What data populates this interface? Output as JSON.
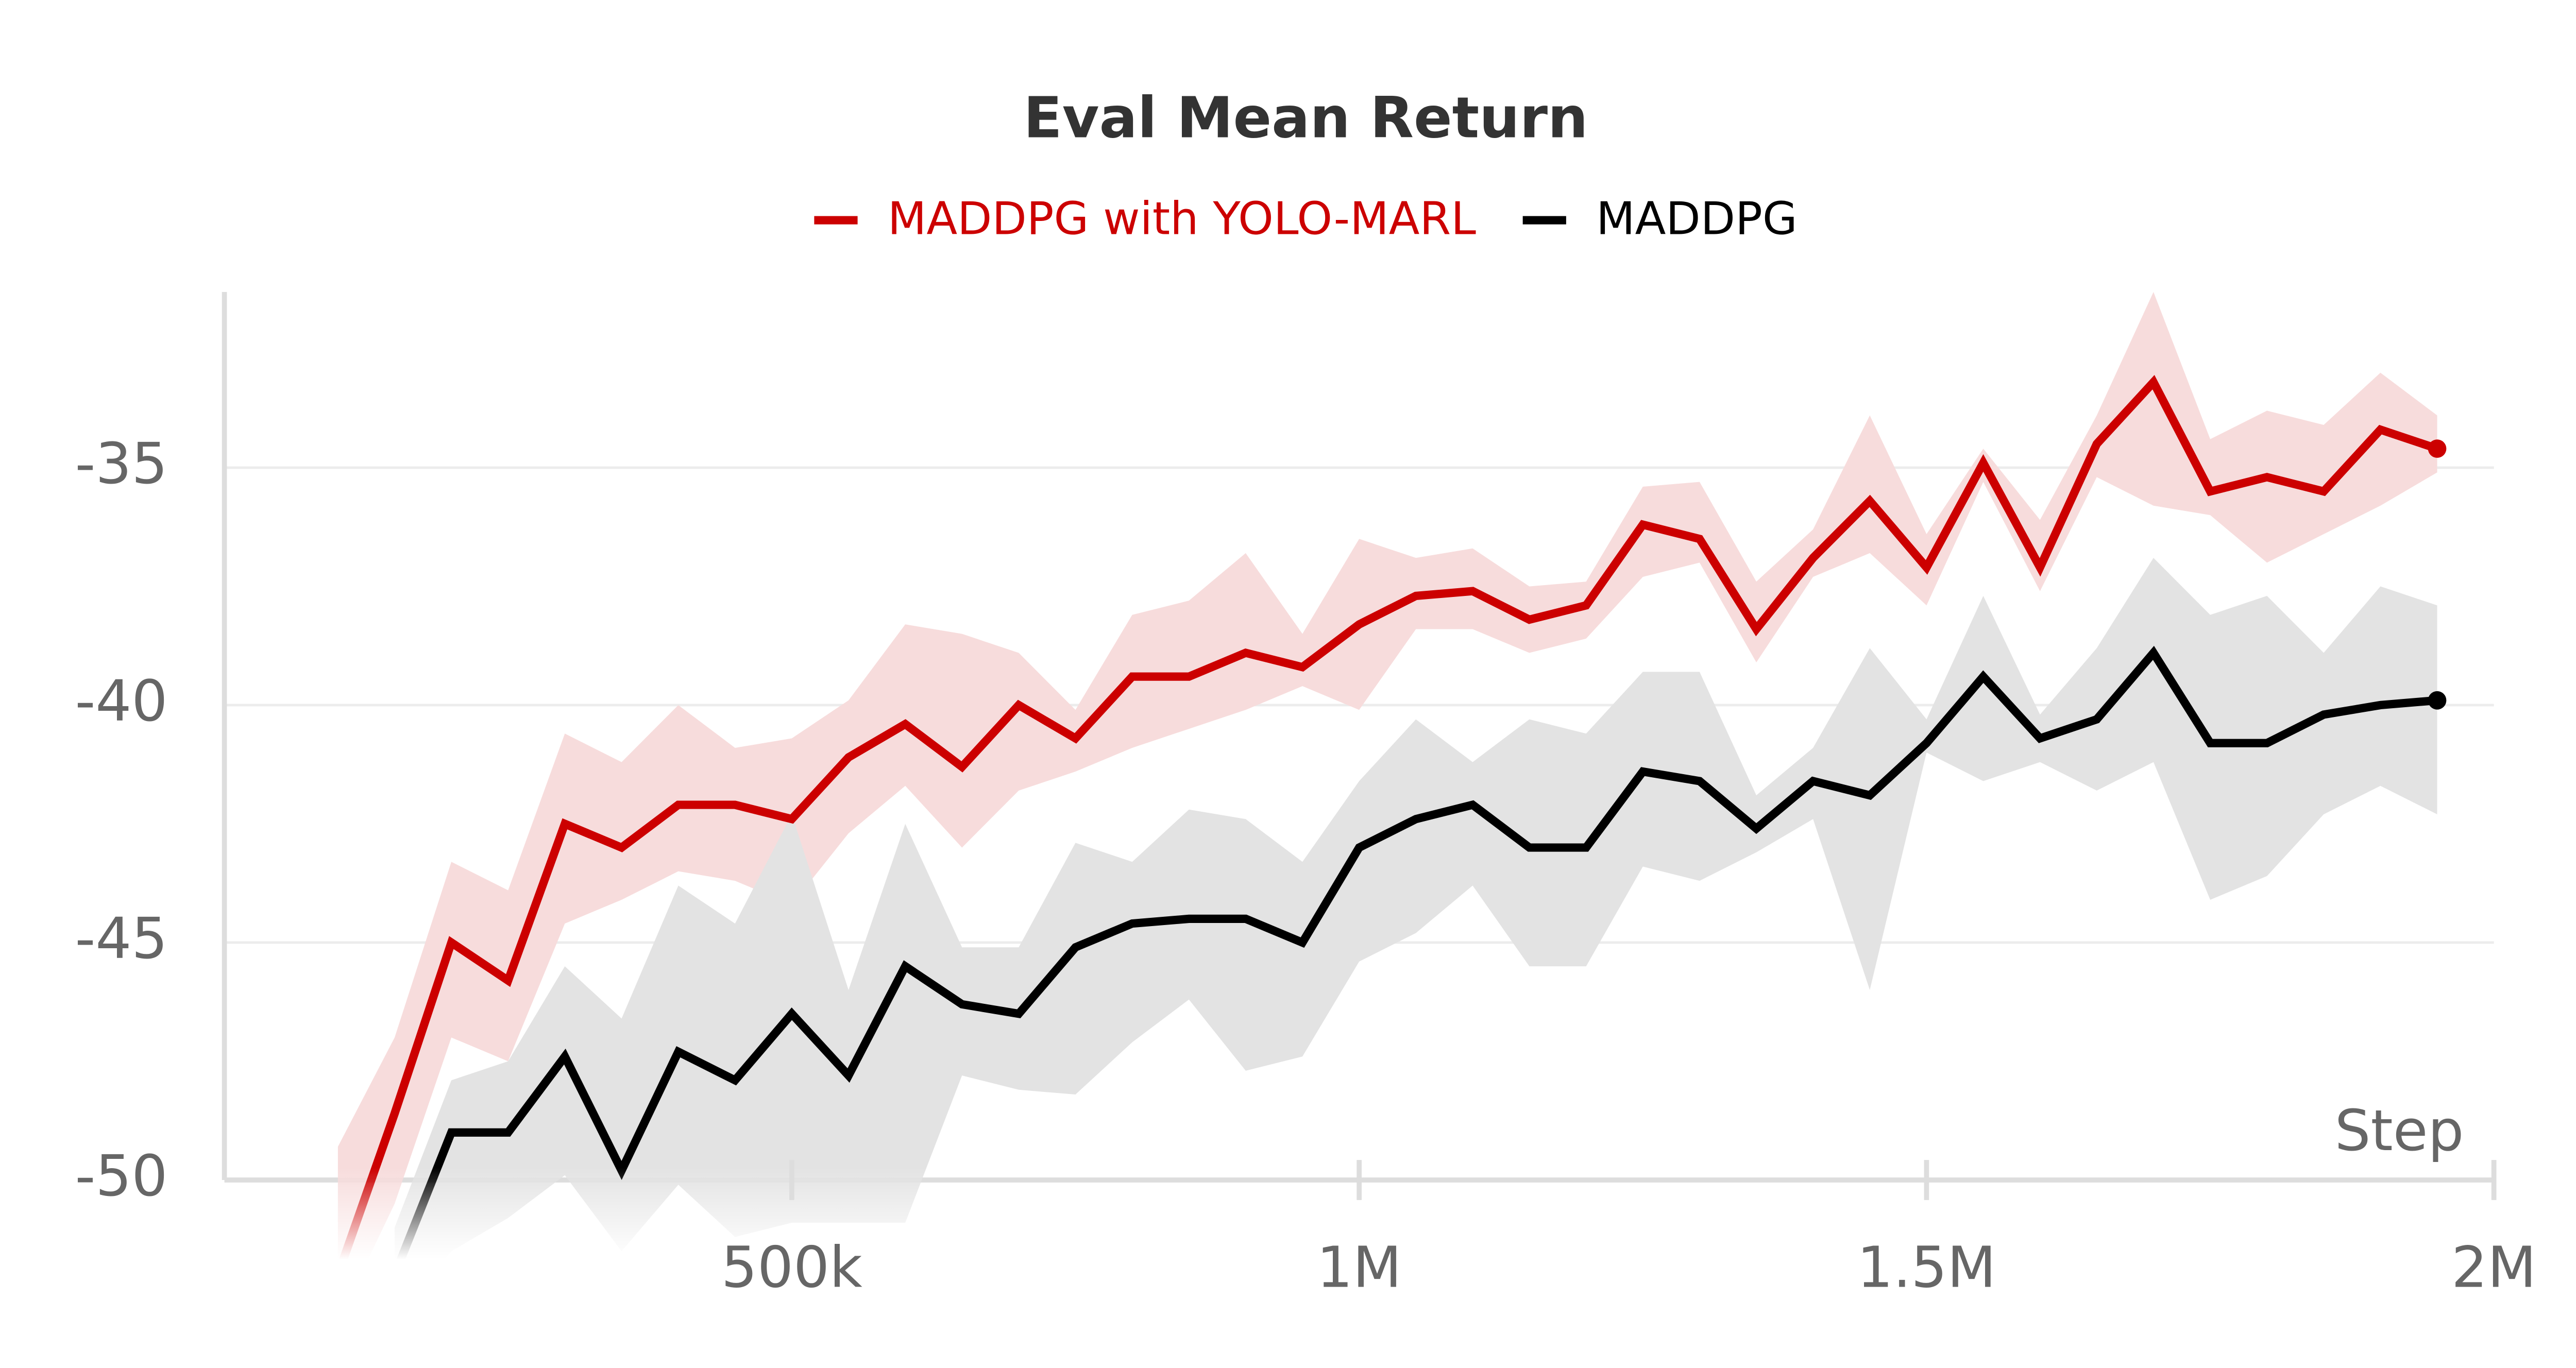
{
  "chart_data": {
    "type": "line",
    "title": "Eval Mean Return",
    "x_label": "Step",
    "x": [
      100000,
      150000,
      200000,
      250000,
      300000,
      350000,
      400000,
      450000,
      500000,
      550000,
      600000,
      650000,
      700000,
      750000,
      800000,
      850000,
      900000,
      950000,
      1000000,
      1050000,
      1100000,
      1150000,
      1200000,
      1250000,
      1300000,
      1350000,
      1400000,
      1450000,
      1500000,
      1550000,
      1600000,
      1650000,
      1700000,
      1750000,
      1800000,
      1850000,
      1900000,
      1950000
    ],
    "xlim": [
      0,
      2000000
    ],
    "xticks": [
      {
        "value": 500000,
        "label": "500k"
      },
      {
        "value": 1000000,
        "label": "1M"
      },
      {
        "value": 1500000,
        "label": "1.5M"
      },
      {
        "value": 2000000,
        "label": "2M"
      }
    ],
    "ylim": [
      -51.5,
      -31.3
    ],
    "yticks": [
      -35,
      -40,
      -45,
      -50
    ],
    "grid": true,
    "legend": "top",
    "series": [
      {
        "name": "MADDPG with YOLO-MARL",
        "color": "#cc0000",
        "band_color": "#f7dcdc",
        "values": [
          -52,
          -48.6,
          -45.0,
          -45.8,
          -42.5,
          -43.0,
          -42.1,
          -42.1,
          -42.4,
          -41.1,
          -40.4,
          -41.3,
          -40.0,
          -40.7,
          -39.4,
          -39.4,
          -38.9,
          -39.2,
          -38.3,
          -37.7,
          -37.6,
          -38.2,
          -37.9,
          -36.2,
          -36.5,
          -38.4,
          -36.9,
          -35.7,
          -37.1,
          -34.9,
          -37.1,
          -34.5,
          -33.2,
          -35.5,
          -35.2,
          -35.5,
          -34.2,
          -34.6
        ],
        "upper": [
          -49.3,
          -47,
          -43.3,
          -43.9,
          -40.6,
          -41.2,
          -40,
          -40.9,
          -40.7,
          -39.9,
          -38.3,
          -38.5,
          -38.9,
          -40.1,
          -38.1,
          -37.8,
          -36.8,
          -38.5,
          -36.5,
          -36.9,
          -36.7,
          -37.5,
          -37.4,
          -35.4,
          -35.3,
          -37.4,
          -36.3,
          -33.9,
          -36.4,
          -34.6,
          -36.1,
          -33.9,
          -31.3,
          -34.4,
          -33.8,
          -34.1,
          -33.0,
          -33.9
        ],
        "lower": [
          -53,
          -50.5,
          -47,
          -47.5,
          -44.6,
          -44.1,
          -43.5,
          -43.7,
          -44.2,
          -42.7,
          -41.7,
          -43.0,
          -41.8,
          -41.4,
          -40.9,
          -40.5,
          -40.1,
          -39.6,
          -40.1,
          -38.4,
          -38.4,
          -38.9,
          -38.6,
          -37.3,
          -37.0,
          -39.1,
          -37.3,
          -36.8,
          -37.9,
          -35.3,
          -37.6,
          -35.2,
          -35.8,
          -36.0,
          -37.0,
          -36.4,
          -35.8,
          -35.1
        ]
      },
      {
        "name": "MADDPG",
        "color": "#000000",
        "band_color": "#e3e3e3",
        "values": [
          null,
          -52,
          -49.0,
          -49.0,
          -47.4,
          -49.8,
          -47.3,
          -47.9,
          -46.5,
          -47.8,
          -45.5,
          -46.3,
          -46.5,
          -45.1,
          -44.6,
          -44.5,
          -44.5,
          -45.0,
          -43.0,
          -42.4,
          -42.1,
          -43.0,
          -43.0,
          -41.4,
          -41.6,
          -42.6,
          -41.6,
          -41.9,
          -40.8,
          -39.4,
          -40.7,
          -40.3,
          -38.9,
          -40.8,
          -40.8,
          -40.2,
          -40.0,
          -39.9
        ],
        "upper": [
          null,
          -51,
          -47.9,
          -47.5,
          -45.5,
          -46.6,
          -43.8,
          -44.6,
          -42.3,
          -46,
          -42.5,
          -45.1,
          -45.1,
          -42.9,
          -43.3,
          -42.2,
          -42.4,
          -43.3,
          -41.6,
          -40.3,
          -41.2,
          -40.3,
          -40.6,
          -39.3,
          -39.3,
          -41.9,
          -40.9,
          -38.8,
          -40.3,
          -37.7,
          -40.2,
          -38.8,
          -36.9,
          -38.1,
          -37.7,
          -38.9,
          -37.5,
          -37.9
        ],
        "lower": [
          null,
          -53,
          -51.5,
          -50.8,
          -49.9,
          -51.5,
          -50.1,
          -51.2,
          -50.9,
          -50.9,
          -50.9,
          -47.8,
          -48.1,
          -48.2,
          -47.1,
          -46.2,
          -47.7,
          -47.4,
          -45.4,
          -44.8,
          -43.8,
          -45.5,
          -45.5,
          -43.4,
          -43.7,
          -43.1,
          -42.4,
          -46.0,
          -41.0,
          -41.6,
          -41.2,
          -41.8,
          -41.2,
          -44.1,
          -43.6,
          -42.3,
          -41.7,
          -42.3
        ]
      }
    ]
  }
}
